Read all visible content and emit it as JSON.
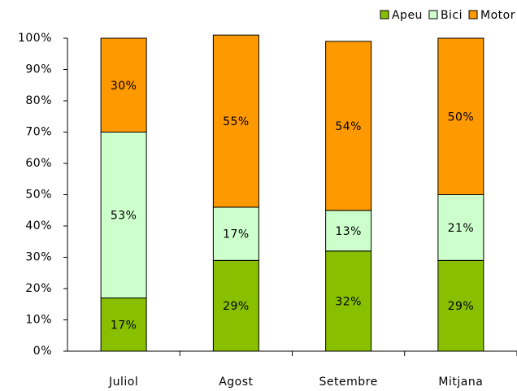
{
  "chart_data": {
    "type": "stacked_bar_100",
    "categories": [
      "Juliol",
      "Agost",
      "Setembre",
      "Mitjana"
    ],
    "series": [
      {
        "name": "Apeu",
        "color": "#88c000",
        "values": [
          17,
          29,
          32,
          29
        ],
        "value_labels": [
          "17%",
          "29%",
          "32%",
          "29%"
        ]
      },
      {
        "name": "Bici",
        "color": "#ccffcc",
        "values": [
          53,
          17,
          13,
          21
        ],
        "value_labels": [
          "53%",
          "17%",
          "13%",
          "21%"
        ]
      },
      {
        "name": "Motor",
        "color": "#ff9900",
        "values": [
          30,
          55,
          54,
          50
        ],
        "value_labels": [
          "30%",
          "55%",
          "54%",
          "50%"
        ]
      }
    ],
    "ylim": [
      0,
      100
    ],
    "yticks": [
      {
        "value": 0,
        "label": "0%"
      },
      {
        "value": 10,
        "label": "10%"
      },
      {
        "value": 20,
        "label": "20%"
      },
      {
        "value": 30,
        "label": "30%"
      },
      {
        "value": 40,
        "label": "40%"
      },
      {
        "value": 50,
        "label": "50%"
      },
      {
        "value": 60,
        "label": "60%"
      },
      {
        "value": 70,
        "label": "70%"
      },
      {
        "value": 80,
        "label": "80%"
      },
      {
        "value": 90,
        "label": "90%"
      },
      {
        "value": 100,
        "label": "100%"
      }
    ],
    "legend": "top-right",
    "grid": false
  }
}
